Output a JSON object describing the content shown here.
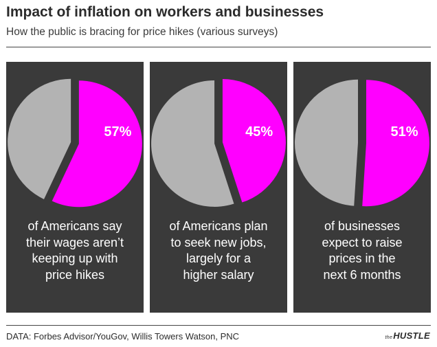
{
  "title": "Impact of inflation on workers and businesses",
  "subtitle": "How the public is bracing for price hikes (various surveys)",
  "source": "DATA: Forbes Advisor/YouGov, Willis Towers Watson, PNC",
  "logo": {
    "small": "the",
    "main": "HUSTLE"
  },
  "colors": {
    "highlight": "#ff00ff",
    "remainder": "#b3b3b3",
    "panel": "#3a3a3a"
  },
  "chart_data": [
    {
      "type": "pie",
      "values": [
        57,
        43
      ],
      "label": "57%",
      "caption": [
        "of Americans say",
        "their wages aren’t",
        "keeping up with",
        "price hikes"
      ]
    },
    {
      "type": "pie",
      "values": [
        45,
        55
      ],
      "label": "45%",
      "caption": [
        "of Americans plan",
        "to seek new jobs,",
        "largely for a",
        "higher salary"
      ]
    },
    {
      "type": "pie",
      "values": [
        51,
        49
      ],
      "label": "51%",
      "caption": [
        "of businesses",
        "expect to raise",
        "prices in the",
        "next 6 months"
      ]
    }
  ]
}
